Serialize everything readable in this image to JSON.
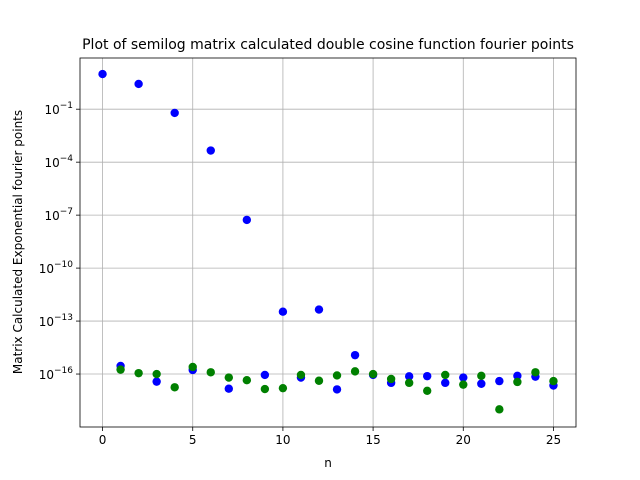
{
  "chart_data": {
    "type": "scatter",
    "title": "Plot of semilog matrix calculated double cosine function fourier points",
    "xlabel": "n",
    "ylabel": "Matrix Calculated Exponential fourier points",
    "xlim": [
      -1.25,
      26.25
    ],
    "ylim_exponent": [
      -19,
      1.9
    ],
    "y_scale": "log",
    "grid": true,
    "x_ticks": [
      0,
      5,
      10,
      15,
      20,
      25
    ],
    "x_tick_labels": [
      "0",
      "5",
      "10",
      "15",
      "20",
      "25"
    ],
    "y_ticks_exponent": [
      -1,
      -4,
      -7,
      -10,
      -13,
      -16
    ],
    "y_tick_labels": [
      {
        "base": "10",
        "exp": "−1"
      },
      {
        "base": "10",
        "exp": "−4"
      },
      {
        "base": "10",
        "exp": "−7"
      },
      {
        "base": "10",
        "exp": "−10"
      },
      {
        "base": "10",
        "exp": "−13"
      },
      {
        "base": "10",
        "exp": "−16"
      }
    ],
    "series": [
      {
        "color": "#0000ff",
        "x": [
          0,
          1,
          2,
          3,
          4,
          5,
          6,
          7,
          8,
          9,
          10,
          11,
          12,
          13,
          14,
          15,
          16,
          17,
          18,
          19,
          20,
          21,
          22,
          23,
          24,
          25
        ],
        "y_exponent": [
          0.99,
          -15.54,
          0.43,
          -16.43,
          -1.21,
          -15.77,
          -3.34,
          -16.83,
          -7.27,
          -16.05,
          -12.47,
          -16.2,
          -12.35,
          -16.87,
          -14.93,
          -16.05,
          -16.5,
          -16.13,
          -16.12,
          -16.5,
          -16.2,
          -16.55,
          -16.4,
          -16.1,
          -16.15,
          -16.65
        ],
        "y_exponent_note": "values with magnitude between large and noise floor"
      },
      {
        "color": "#008000",
        "x": [
          1,
          2,
          3,
          4,
          5,
          6,
          7,
          8,
          9,
          10,
          11,
          12,
          13,
          14,
          15,
          16,
          17,
          18,
          19,
          20,
          21,
          22,
          23,
          24,
          25
        ],
        "y_exponent": [
          -15.75,
          -15.95,
          -16.0,
          -16.75,
          -15.6,
          -15.9,
          -16.2,
          -16.35,
          -16.85,
          -16.8,
          -16.05,
          -16.38,
          -16.08,
          -15.85,
          -16.0,
          -16.28,
          -16.5,
          -16.95,
          -16.05,
          -16.6,
          -16.1,
          -18.0,
          -16.45,
          -15.9,
          -16.4
        ]
      }
    ]
  }
}
